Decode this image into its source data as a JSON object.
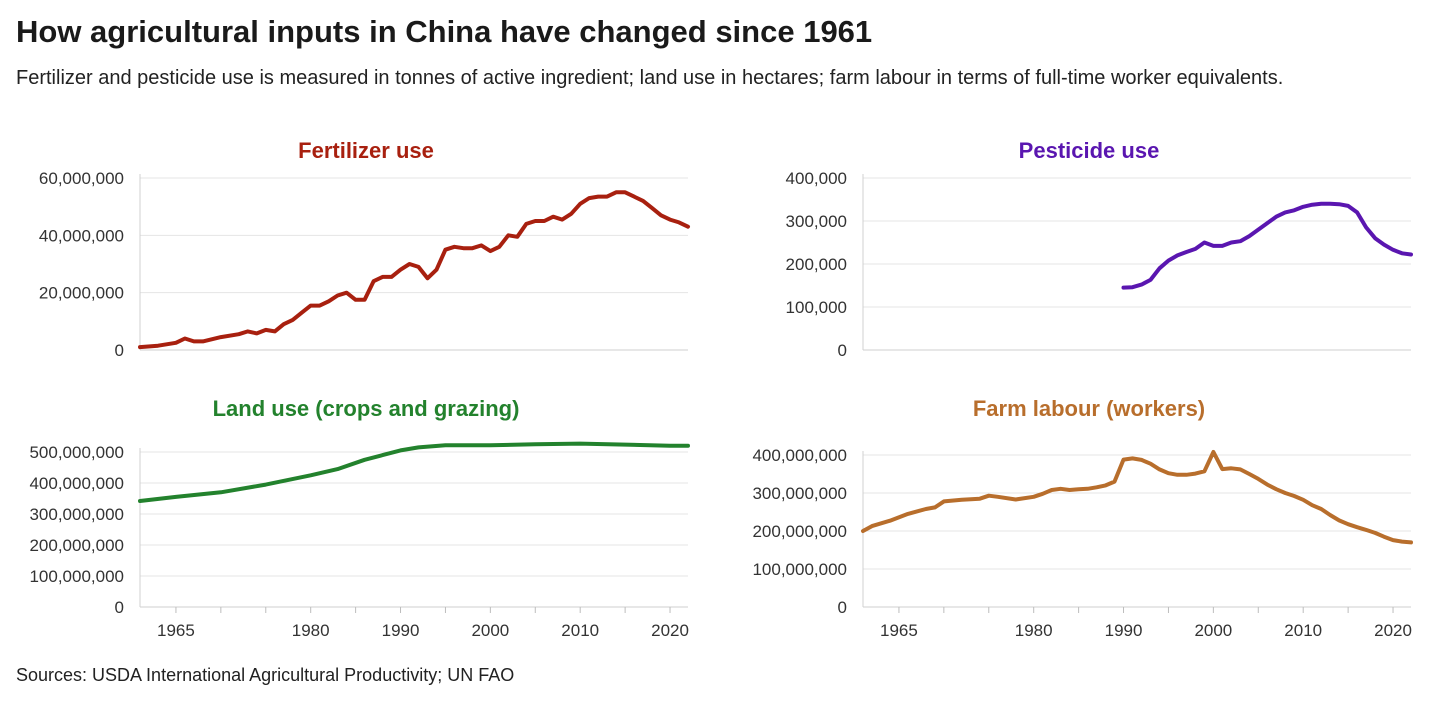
{
  "title": "How agricultural inputs in China have changed since 1961",
  "subtitle": "Fertilizer and pesticide use is measured in tonnes of active ingredient; land use in hectares; farm labour in terms of full-time worker equivalents.",
  "source": "Sources: USDA International Agricultural Productivity; UN FAO",
  "chart_data": [
    {
      "type": "line",
      "title": "Fertilizer use",
      "color": "#a8200f",
      "xlim": [
        1961,
        2022
      ],
      "ylim": [
        0,
        60000000
      ],
      "yticks": [
        0,
        20000000,
        40000000,
        60000000
      ],
      "ytick_labels": [
        "0",
        "20,000,000",
        "40,000,000",
        "60,000,000"
      ],
      "xticks": [],
      "xtick_labels": [],
      "x": [
        1961,
        1963,
        1965,
        1966,
        1967,
        1968,
        1970,
        1972,
        1973,
        1974,
        1975,
        1976,
        1977,
        1978,
        1979,
        1980,
        1981,
        1982,
        1983,
        1984,
        1985,
        1986,
        1987,
        1988,
        1989,
        1990,
        1991,
        1992,
        1993,
        1994,
        1995,
        1996,
        1997,
        1998,
        1999,
        2000,
        2001,
        2002,
        2003,
        2004,
        2005,
        2006,
        2007,
        2008,
        2009,
        2010,
        2011,
        2012,
        2013,
        2014,
        2015,
        2016,
        2017,
        2018,
        2019,
        2020,
        2021,
        2022
      ],
      "y": [
        1000000,
        1500000,
        2500000,
        4000000,
        3000000,
        3000000,
        4500000,
        5500000,
        6500000,
        5800000,
        7000000,
        6500000,
        9000000,
        10500000,
        13000000,
        15500000,
        15500000,
        17000000,
        19000000,
        20000000,
        17500000,
        17500000,
        24000000,
        25500000,
        25500000,
        28000000,
        30000000,
        29000000,
        25000000,
        28000000,
        35000000,
        36000000,
        35500000,
        35500000,
        36500000,
        34500000,
        36000000,
        40000000,
        39500000,
        44000000,
        45000000,
        45000000,
        46500000,
        45500000,
        47500000,
        51000000,
        53000000,
        53500000,
        53500000,
        55000000,
        55000000,
        53500000,
        52000000,
        49500000,
        47000000,
        45500000,
        44500000,
        43000000
      ]
    },
    {
      "type": "line",
      "title": "Pesticide use",
      "color": "#5a16b0",
      "xlim": [
        1961,
        2022
      ],
      "ylim": [
        0,
        400000
      ],
      "yticks": [
        0,
        100000,
        200000,
        300000,
        400000
      ],
      "ytick_labels": [
        "0",
        "100,000",
        "200,000",
        "300,000",
        "400,000"
      ],
      "xticks": [],
      "xtick_labels": [],
      "x": [
        1990,
        1991,
        1992,
        1993,
        1994,
        1995,
        1996,
        1997,
        1998,
        1999,
        2000,
        2001,
        2002,
        2003,
        2004,
        2005,
        2006,
        2007,
        2008,
        2009,
        2010,
        2011,
        2012,
        2013,
        2014,
        2015,
        2016,
        2017,
        2018,
        2019,
        2020,
        2021,
        2022
      ],
      "y": [
        145000,
        146000,
        152000,
        163000,
        190000,
        208000,
        220000,
        228000,
        235000,
        250000,
        242000,
        242000,
        250000,
        253000,
        265000,
        280000,
        295000,
        310000,
        320000,
        325000,
        333000,
        338000,
        340000,
        340000,
        339000,
        335000,
        320000,
        285000,
        260000,
        245000,
        233000,
        225000,
        222000
      ]
    },
    {
      "type": "line",
      "title": "Land use (crops and grazing)",
      "color": "#23822d",
      "xlim": [
        1961,
        2022
      ],
      "ylim": [
        0,
        500000000
      ],
      "yticks": [
        0,
        100000000,
        200000000,
        300000000,
        400000000,
        500000000
      ],
      "ytick_labels": [
        "0",
        "100,000,000",
        "200,000,000",
        "300,000,000",
        "400,000,000",
        "500,000,000"
      ],
      "xticks": [
        1965,
        1980,
        1990,
        2000,
        2010,
        2020
      ],
      "xtick_labels": [
        "1965",
        "1980",
        "1990",
        "2000",
        "2010",
        "2020"
      ],
      "x": [
        1961,
        1965,
        1970,
        1975,
        1980,
        1983,
        1986,
        1988,
        1990,
        1992,
        1995,
        2000,
        2005,
        2010,
        2015,
        2020,
        2022
      ],
      "y": [
        342000000,
        355000000,
        370000000,
        395000000,
        425000000,
        445000000,
        475000000,
        490000000,
        505000000,
        515000000,
        522000000,
        522000000,
        525000000,
        527000000,
        524000000,
        520000000,
        520000000
      ]
    },
    {
      "type": "line",
      "title": "Farm labour (workers)",
      "color": "#b86e2c",
      "xlim": [
        1961,
        2022
      ],
      "ylim": [
        0,
        400000000
      ],
      "yticks": [
        0,
        100000000,
        200000000,
        300000000,
        400000000
      ],
      "ytick_labels": [
        "0",
        "100,000,000",
        "200,000,000",
        "300,000,000",
        "400,000,000"
      ],
      "xticks": [
        1965,
        1980,
        1990,
        2000,
        2010,
        2020
      ],
      "xtick_labels": [
        "1965",
        "1980",
        "1990",
        "2000",
        "2010",
        "2020"
      ],
      "x": [
        1961,
        1962,
        1964,
        1966,
        1968,
        1969,
        1970,
        1972,
        1974,
        1975,
        1976,
        1978,
        1980,
        1981,
        1982,
        1983,
        1984,
        1985,
        1986,
        1987,
        1988,
        1989,
        1990,
        1991,
        1992,
        1993,
        1994,
        1995,
        1996,
        1997,
        1998,
        1999,
        2000,
        2001,
        2002,
        2003,
        2004,
        2005,
        2006,
        2007,
        2008,
        2009,
        2010,
        2011,
        2012,
        2013,
        2014,
        2015,
        2016,
        2017,
        2018,
        2019,
        2020,
        2021,
        2022
      ],
      "y": [
        200000000,
        213000000,
        227000000,
        245000000,
        258000000,
        262000000,
        278000000,
        282000000,
        285000000,
        293000000,
        290000000,
        283000000,
        290000000,
        298000000,
        308000000,
        311000000,
        308000000,
        310000000,
        311000000,
        315000000,
        320000000,
        330000000,
        388000000,
        391000000,
        387000000,
        377000000,
        362000000,
        352000000,
        348000000,
        348000000,
        351000000,
        357000000,
        408000000,
        363000000,
        365000000,
        362000000,
        350000000,
        337000000,
        322000000,
        310000000,
        300000000,
        292000000,
        282000000,
        268000000,
        258000000,
        242000000,
        228000000,
        218000000,
        210000000,
        203000000,
        195000000,
        185000000,
        176000000,
        172000000,
        170000000
      ]
    }
  ]
}
